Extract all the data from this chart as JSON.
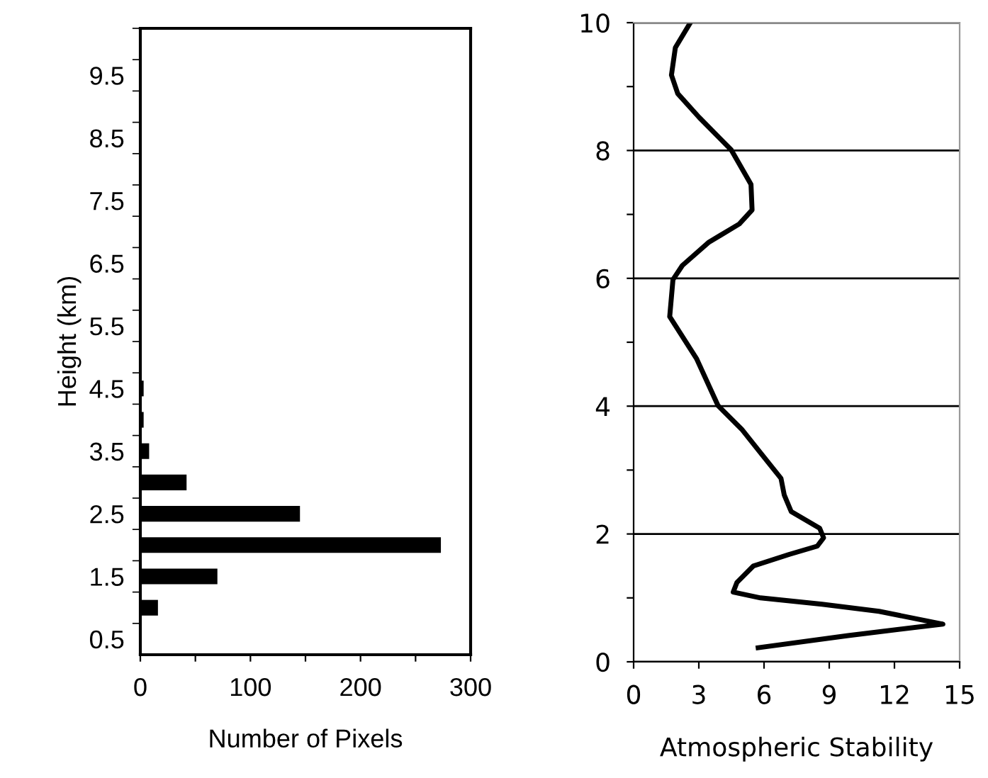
{
  "chart_data": [
    {
      "type": "bar",
      "orientation": "horizontal",
      "ylabel": "Height (km)",
      "xlabel": "Number of Pixels",
      "categories": [
        null,
        "9.5",
        null,
        "8.5",
        null,
        "7.5",
        null,
        "6.5",
        null,
        "5.5",
        null,
        "4.5",
        null,
        "3.5",
        null,
        "2.5",
        null,
        "1.5",
        null,
        "0.5"
      ],
      "values": [
        0,
        0,
        0,
        0,
        0,
        0,
        0,
        0,
        0,
        0,
        0,
        3,
        3,
        8,
        42,
        145,
        273,
        70,
        16,
        0
      ],
      "color": "#000000",
      "xlim": [
        0,
        300
      ],
      "xticks": [
        0,
        {
          "value": 50,
          "label": null
        },
        100,
        {
          "value": 150,
          "label": null
        },
        200,
        {
          "value": 250,
          "label": null
        },
        300
      ],
      "grid": false,
      "legend": false
    },
    {
      "type": "line",
      "xlabel": "Atmospheric Stability",
      "series": [
        {
          "color": "#000000",
          "x": [
            5.73,
            9.87,
            14.23,
            11.29,
            8.67,
            5.84,
            4.58,
            4.75,
            5.51,
            7.15,
            8.45,
            8.74,
            8.56,
            7.25,
            6.93,
            6.78,
            5.84,
            4.97,
            3.88,
            2.9,
            1.66,
            1.81,
            2.24,
            3.44,
            4.86,
            5.45,
            5.4,
            4.49,
            3.01,
            2.03,
            1.74,
            1.92,
            2.61
          ],
          "values": [
            0.22,
            0.41,
            0.59,
            0.79,
            0.9,
            1.0,
            1.09,
            1.24,
            1.5,
            1.68,
            1.81,
            1.94,
            2.09,
            2.35,
            2.61,
            2.87,
            3.27,
            3.64,
            4.01,
            4.74,
            5.4,
            5.98,
            6.2,
            6.56,
            6.85,
            7.07,
            7.47,
            8.01,
            8.52,
            8.89,
            9.18,
            9.61,
            10.0
          ]
        }
      ],
      "xlim": [
        0,
        15
      ],
      "xticks": [
        0,
        3,
        6,
        9,
        12,
        15
      ],
      "ylim": [
        0,
        10
      ],
      "yticks": [
        0,
        {
          "value": 1,
          "label": null
        },
        2,
        {
          "value": 3,
          "label": null
        },
        4,
        {
          "value": 5,
          "label": null
        },
        6,
        {
          "value": 7,
          "label": null
        },
        8,
        {
          "value": 9,
          "label": null
        },
        10
      ],
      "grid": "y",
      "marker": "none",
      "line_style": "solid",
      "legend": false
    }
  ]
}
